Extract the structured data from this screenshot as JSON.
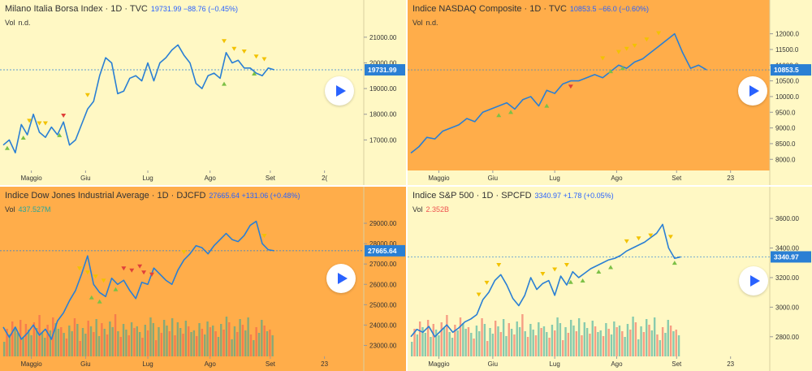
{
  "panels": [
    {
      "title": "Milano Italia Borsa Index · 1D · TVC",
      "values_text": "19731.99  −88.76 (−0.45%)",
      "vol_label": "Vol",
      "vol_value": "n.d.",
      "vol_color": "#333333",
      "last_price": "19731.99",
      "bg_chart": "#fff8c4",
      "bg_axis": "#fff8c4",
      "y_ticks": [
        "21000.00",
        "20000.00",
        "19000.00",
        "18000.00",
        "17000.00"
      ],
      "x_ticks": [
        "Maggio",
        "Giu",
        "Lug",
        "Ago",
        "Set",
        "2("
      ],
      "play_icon": "play-icon"
    },
    {
      "title": "Indice NASDAQ Composite · 1D · TVC",
      "values_text": "10853.5  −66.0 (−0.60%)",
      "vol_label": "Vol",
      "vol_value": "n.d.",
      "vol_color": "#333333",
      "last_price": "10853.5",
      "bg_chart": "#ffad4a",
      "bg_axis": "#fff8c4",
      "y_ticks": [
        "12000.0",
        "11500.0",
        "11000.0",
        "10500.0",
        "10000.0",
        "9500.0",
        "9000.0",
        "8500.0",
        "8000.0"
      ],
      "x_ticks": [
        "Maggio",
        "Giu",
        "Lug",
        "Ago",
        "Set",
        "23"
      ],
      "play_icon": "play-icon"
    },
    {
      "title": "Indice Dow Jones Industrial Average · 1D · DJCFD",
      "values_text": "27665.64  +131.06 (+0.48%)",
      "vol_label": "Vol",
      "vol_value": "437.527M",
      "vol_color": "#26a69a",
      "last_price": "27665.64",
      "bg_chart": "#ffad4a",
      "bg_axis": "#ffad4a",
      "y_ticks": [
        "29000.00",
        "28000.00",
        "27000.00",
        "26000.00",
        "25000.00",
        "24000.00",
        "23000.00"
      ],
      "x_ticks": [
        "Maggio",
        "Giu",
        "Lug",
        "Ago",
        "Set",
        "23"
      ],
      "play_icon": "play-icon"
    },
    {
      "title": "Indice S&P 500 · 1D · SPCFD",
      "values_text": "3340.97  +1.78 (+0.05%)",
      "vol_label": "Vol",
      "vol_value": "2.352B",
      "vol_color": "#ef5350",
      "last_price": "3340.97",
      "bg_chart": "#fff8c4",
      "bg_axis": "#fff8c4",
      "y_ticks": [
        "3600.00",
        "3400.00",
        "3200.00",
        "3000.00",
        "2800.00"
      ],
      "x_ticks": [
        "Maggio",
        "Giu",
        "Lug",
        "Ago",
        "Set",
        "23"
      ],
      "play_icon": "play-icon"
    }
  ],
  "chart_data": [
    {
      "type": "line",
      "ylim": [
        16000,
        21500
      ],
      "y_ticks": [
        21000,
        20000,
        19000,
        18000,
        17000
      ],
      "x": [
        0,
        3,
        6,
        9,
        12,
        15,
        18,
        21,
        24,
        27,
        30,
        33,
        36,
        39,
        42,
        45,
        48,
        51,
        54,
        57,
        60,
        63,
        66,
        69,
        72,
        75,
        78,
        81,
        84,
        87,
        90,
        93,
        96,
        99,
        102,
        105,
        108,
        111,
        114,
        117,
        120,
        123,
        126,
        129,
        132,
        135
      ],
      "series": [
        {
          "values": [
            16800,
            17000,
            16500,
            17600,
            17200,
            18000,
            17300,
            17100,
            17500,
            17200,
            17700,
            16800,
            17000,
            17600,
            18200,
            18500,
            19500,
            20200,
            20000,
            18800,
            18900,
            19400,
            19500,
            19300,
            20000,
            19300,
            20000,
            20200,
            20500,
            20700,
            20300,
            20000,
            19200,
            19000,
            19500,
            19600,
            19400,
            20400,
            20000,
            20100,
            19800,
            19800,
            19600,
            19500,
            19800,
            19730
          ]
        }
      ],
      "x_ticks": [
        "Maggio",
        "Giu",
        "Lug",
        "Ago",
        "Set",
        "2("
      ],
      "x_tick_pos": [
        14,
        41,
        72,
        103,
        133,
        160
      ],
      "markers": {
        "sell": [
          [
            13,
            17600
          ],
          [
            18,
            17500
          ],
          [
            21,
            17500
          ],
          [
            42,
            18600
          ],
          [
            110,
            20700
          ],
          [
            115,
            20400
          ],
          [
            120,
            20300
          ],
          [
            126,
            20100
          ],
          [
            130,
            20000
          ]
        ],
        "buy": [
          [
            2,
            16800
          ],
          [
            10,
            17200
          ],
          [
            28,
            17300
          ],
          [
            110,
            19300
          ],
          [
            125,
            19700
          ]
        ],
        "red": [
          [
            30,
            17800
          ]
        ]
      }
    },
    {
      "type": "line",
      "ylim": [
        7800,
        12300
      ],
      "y_ticks": [
        12000,
        11500,
        11000,
        10500,
        10000,
        9500,
        9000,
        8500,
        8000
      ],
      "x": [
        0,
        4,
        8,
        12,
        16,
        20,
        24,
        28,
        32,
        36,
        40,
        44,
        48,
        52,
        56,
        60,
        64,
        68,
        72,
        76,
        80,
        84,
        88,
        92,
        96,
        100,
        104,
        108,
        112,
        116,
        120,
        124,
        128,
        132,
        136,
        140,
        144,
        148
      ],
      "series": [
        {
          "values": [
            8200,
            8400,
            8700,
            8650,
            8900,
            9000,
            9100,
            9300,
            9200,
            9500,
            9600,
            9700,
            9800,
            9600,
            9900,
            10000,
            9700,
            10200,
            10100,
            10400,
            10500,
            10500,
            10600,
            10700,
            10600,
            10800,
            11000,
            10900,
            11100,
            11200,
            11400,
            11600,
            11800,
            12000,
            11400,
            10900,
            11000,
            10850
          ]
        }
      ],
      "x_ticks": [
        "Maggio",
        "Giu",
        "Lug",
        "Ago",
        "Set",
        "23"
      ],
      "x_tick_pos": [
        14,
        41,
        72,
        103,
        133,
        160
      ],
      "markers": {
        "sell": [
          [
            96,
            11100
          ],
          [
            104,
            11300
          ],
          [
            108,
            11400
          ],
          [
            112,
            11500
          ],
          [
            118,
            11700
          ],
          [
            124,
            11900
          ]
        ],
        "buy": [
          [
            44,
            9500
          ],
          [
            50,
            9600
          ],
          [
            68,
            9800
          ],
          [
            100,
            10900
          ],
          [
            106,
            11000
          ]
        ],
        "red": [
          [
            80,
            10200
          ]
        ]
      }
    },
    {
      "type": "line",
      "ylim": [
        22700,
        29600
      ],
      "y_ticks": [
        29000,
        28000,
        27000,
        26000,
        25000,
        24000,
        23000
      ],
      "x": [
        0,
        3,
        6,
        9,
        12,
        15,
        18,
        21,
        24,
        27,
        30,
        33,
        36,
        39,
        42,
        45,
        48,
        51,
        54,
        57,
        60,
        63,
        66,
        69,
        72,
        75,
        78,
        81,
        84,
        87,
        90,
        93,
        96,
        99,
        102,
        105,
        108,
        111,
        114,
        117,
        120,
        123,
        126,
        129,
        132,
        135
      ],
      "series": [
        {
          "values": [
            23900,
            23400,
            23900,
            23300,
            23600,
            24000,
            23500,
            23800,
            23300,
            24200,
            24600,
            25200,
            25700,
            26500,
            27400,
            26000,
            25600,
            25400,
            26300,
            26000,
            26200,
            25700,
            25300,
            26100,
            26000,
            26800,
            26500,
            26200,
            26000,
            26700,
            27200,
            27500,
            27900,
            27800,
            27500,
            27900,
            28200,
            28500,
            28200,
            28100,
            28400,
            28900,
            29100,
            28000,
            27700,
            27650
          ]
        }
      ],
      "x_ticks": [
        "Maggio",
        "Giu",
        "Lug",
        "Ago",
        "Set",
        "23"
      ],
      "x_tick_pos": [
        14,
        41,
        72,
        103,
        133,
        160
      ],
      "markers": {
        "sell": [
          [
            38,
            26600
          ],
          [
            42,
            26400
          ],
          [
            46,
            26200
          ],
          [
            50,
            26000
          ],
          [
            90,
            27400
          ],
          [
            130,
            28200
          ]
        ],
        "buy": [
          [
            44,
            25500
          ],
          [
            48,
            25300
          ],
          [
            56,
            25900
          ]
        ],
        "red": [
          [
            60,
            26600
          ],
          [
            64,
            26500
          ],
          [
            68,
            26700
          ],
          [
            70,
            26400
          ],
          [
            74,
            26300
          ]
        ]
      },
      "volume_colors": [
        "#26a69a",
        "#ef5350"
      ]
    },
    {
      "type": "line",
      "ylim": [
        2700,
        3650
      ],
      "y_ticks": [
        3600,
        3400,
        3200,
        3000,
        2800
      ],
      "x": [
        0,
        3,
        6,
        9,
        12,
        15,
        18,
        21,
        24,
        27,
        30,
        33,
        36,
        39,
        42,
        45,
        48,
        51,
        54,
        57,
        60,
        63,
        66,
        69,
        72,
        75,
        78,
        81,
        84,
        87,
        90,
        93,
        96,
        99,
        102,
        105,
        108,
        111,
        114,
        117,
        120,
        123,
        126,
        129,
        132,
        135
      ],
      "series": [
        {
          "values": [
            2800,
            2850,
            2830,
            2870,
            2800,
            2840,
            2880,
            2830,
            2860,
            2900,
            2920,
            2950,
            3050,
            3100,
            3180,
            3220,
            3150,
            3060,
            3010,
            3080,
            3200,
            3120,
            3160,
            3180,
            3080,
            3210,
            3150,
            3240,
            3200,
            3230,
            3260,
            3280,
            3300,
            3320,
            3330,
            3350,
            3380,
            3400,
            3420,
            3440,
            3470,
            3500,
            3560,
            3400,
            3330,
            3340
          ]
        }
      ],
      "x_ticks": [
        "Maggio",
        "Giu",
        "Lug",
        "Ago",
        "Set",
        "23"
      ],
      "x_tick_pos": [
        14,
        41,
        72,
        103,
        133,
        160
      ],
      "markers": {
        "sell": [
          [
            34,
            3060
          ],
          [
            38,
            3140
          ],
          [
            44,
            3260
          ],
          [
            66,
            3200
          ],
          [
            72,
            3230
          ],
          [
            78,
            3260
          ],
          [
            108,
            3420
          ],
          [
            114,
            3440
          ],
          [
            120,
            3460
          ],
          [
            130,
            3450
          ]
        ],
        "buy": [
          [
            80,
            3190
          ],
          [
            86,
            3200
          ],
          [
            94,
            3260
          ],
          [
            100,
            3290
          ],
          [
            132,
            3320
          ]
        ],
        "red": []
      },
      "volume_colors": [
        "#26a69a",
        "#ef5350"
      ]
    }
  ]
}
